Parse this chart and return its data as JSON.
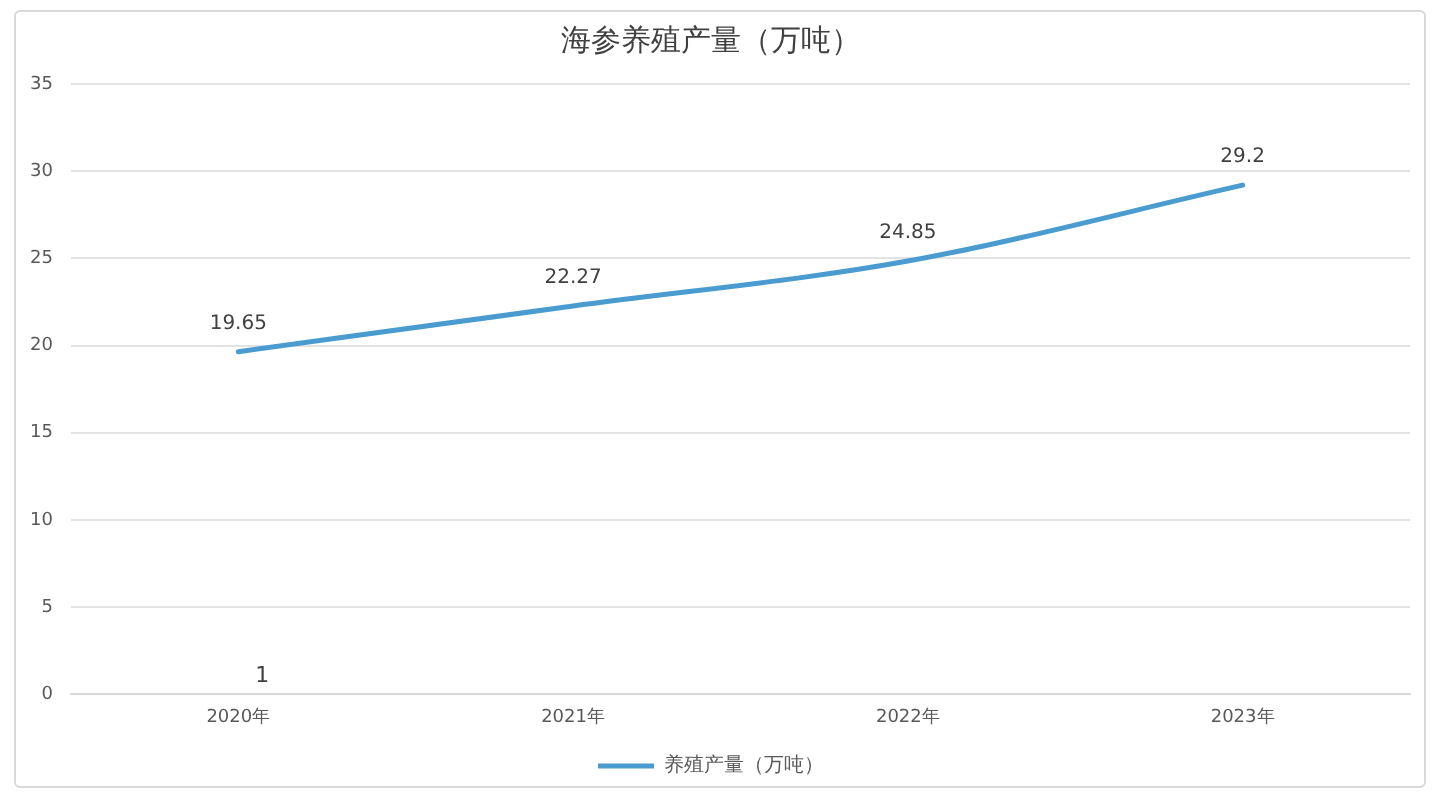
{
  "chart_data": {
    "type": "line",
    "title": "海参养殖产量（万吨）",
    "categories": [
      "2020年",
      "2021年",
      "2022年",
      "2023年"
    ],
    "series": [
      {
        "name": "养殖产量（万吨）",
        "color": "#4a9cd0",
        "values": [
          19.65,
          22.27,
          24.85,
          29.2
        ]
      }
    ],
    "ylim": [
      0,
      35
    ],
    "yticks": [
      0,
      5,
      10,
      15,
      20,
      25,
      30,
      35
    ],
    "grid": "y",
    "legend": "bottom",
    "data_labels": true,
    "annotations": [
      "1"
    ]
  }
}
